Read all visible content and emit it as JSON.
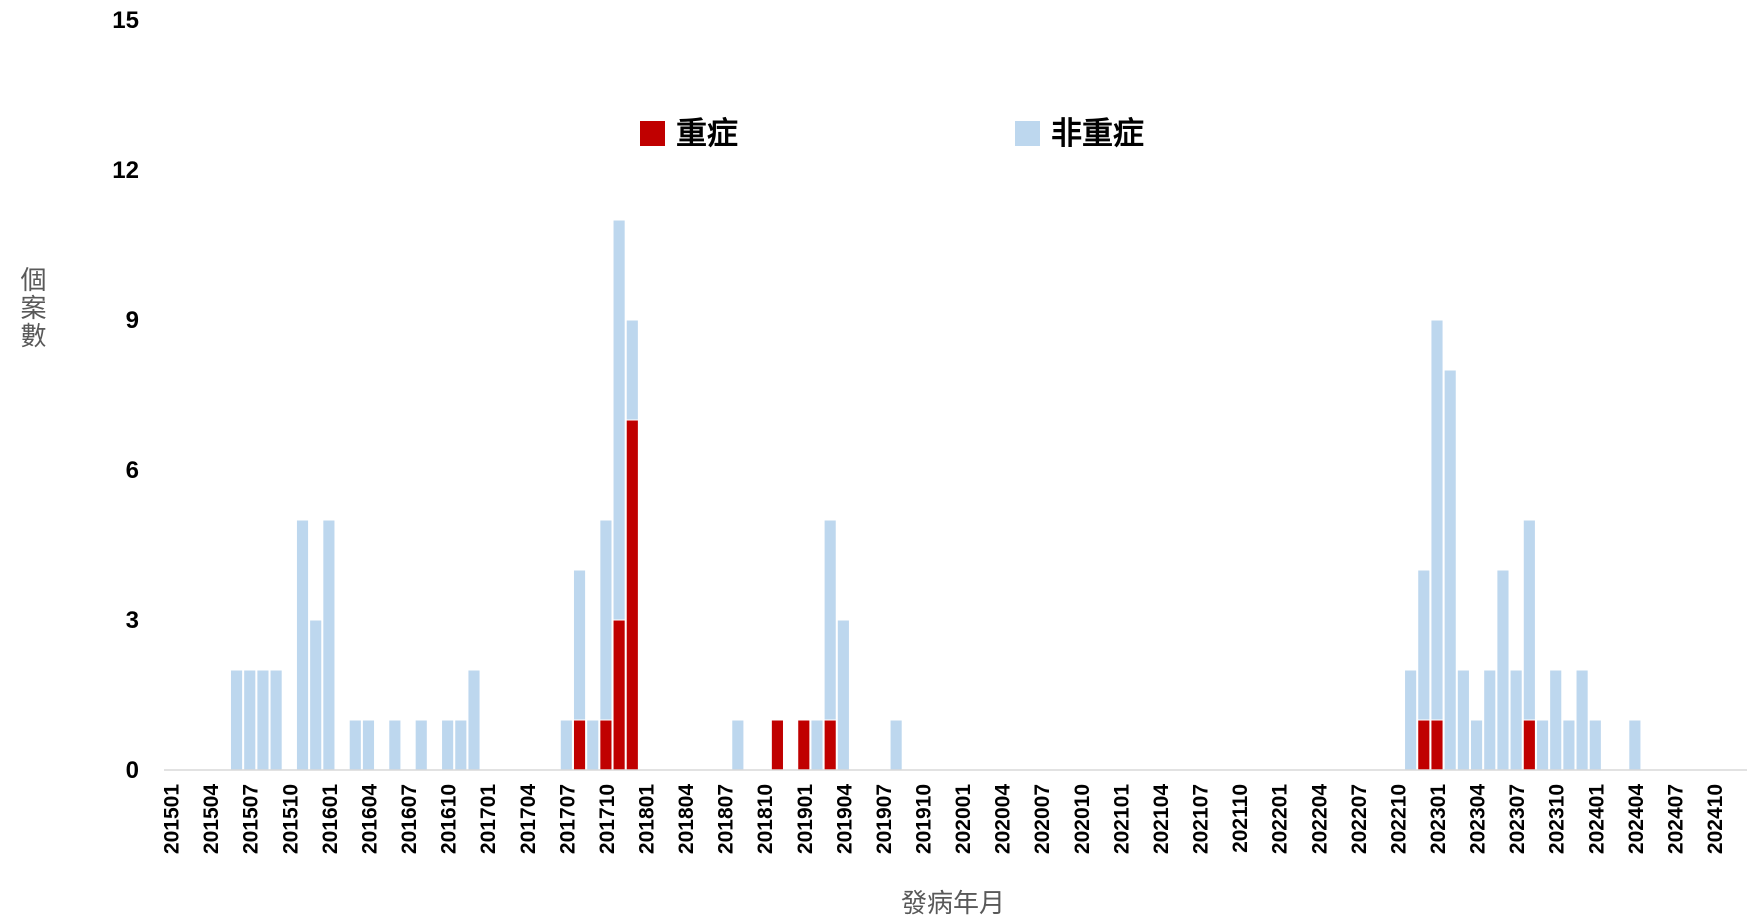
{
  "chart_data": {
    "type": "bar",
    "stacked": true,
    "title": "",
    "xlabel": "發病年月",
    "ylabel": "個案數",
    "ylim": [
      0,
      15
    ],
    "yticks": [
      0,
      3,
      6,
      9,
      12,
      15
    ],
    "grid": false,
    "legend_position": "top-center",
    "x_start": "201501",
    "x_end": "202412",
    "x_tick_labels": [
      "201501",
      "201504",
      "201507",
      "201510",
      "201601",
      "201604",
      "201607",
      "201610",
      "201701",
      "201704",
      "201707",
      "201710",
      "201801",
      "201804",
      "201807",
      "201810",
      "201901",
      "201904",
      "201907",
      "201910",
      "202001",
      "202004",
      "202007",
      "202010",
      "202101",
      "202104",
      "202107",
      "202110",
      "202201",
      "202204",
      "202207",
      "202210",
      "202301",
      "202304",
      "202307",
      "202310",
      "202401",
      "202404",
      "202407",
      "202410"
    ],
    "series": [
      {
        "name": "重症",
        "color": "#c00000",
        "points": [
          {
            "x": "201708",
            "y": 1
          },
          {
            "x": "201710",
            "y": 1
          },
          {
            "x": "201711",
            "y": 3
          },
          {
            "x": "201712",
            "y": 7
          },
          {
            "x": "201811",
            "y": 1
          },
          {
            "x": "201901",
            "y": 1
          },
          {
            "x": "201903",
            "y": 1
          },
          {
            "x": "202212",
            "y": 1
          },
          {
            "x": "202301",
            "y": 1
          },
          {
            "x": "202308",
            "y": 1
          }
        ]
      },
      {
        "name": "非重症",
        "color": "#bdd7ee",
        "points": [
          {
            "x": "201506",
            "y": 2
          },
          {
            "x": "201507",
            "y": 2
          },
          {
            "x": "201508",
            "y": 2
          },
          {
            "x": "201509",
            "y": 2
          },
          {
            "x": "201511",
            "y": 5
          },
          {
            "x": "201512",
            "y": 3
          },
          {
            "x": "201601",
            "y": 5
          },
          {
            "x": "201603",
            "y": 1
          },
          {
            "x": "201604",
            "y": 1
          },
          {
            "x": "201606",
            "y": 1
          },
          {
            "x": "201608",
            "y": 1
          },
          {
            "x": "201610",
            "y": 1
          },
          {
            "x": "201611",
            "y": 1
          },
          {
            "x": "201612",
            "y": 2
          },
          {
            "x": "201707",
            "y": 1
          },
          {
            "x": "201708",
            "y": 3
          },
          {
            "x": "201709",
            "y": 1
          },
          {
            "x": "201710",
            "y": 4
          },
          {
            "x": "201711",
            "y": 8
          },
          {
            "x": "201712",
            "y": 2
          },
          {
            "x": "201808",
            "y": 1
          },
          {
            "x": "201902",
            "y": 1
          },
          {
            "x": "201903",
            "y": 4
          },
          {
            "x": "201904",
            "y": 3
          },
          {
            "x": "201908",
            "y": 1
          },
          {
            "x": "202211",
            "y": 2
          },
          {
            "x": "202212",
            "y": 3
          },
          {
            "x": "202301",
            "y": 8
          },
          {
            "x": "202302",
            "y": 8
          },
          {
            "x": "202303",
            "y": 2
          },
          {
            "x": "202304",
            "y": 1
          },
          {
            "x": "202305",
            "y": 2
          },
          {
            "x": "202306",
            "y": 4
          },
          {
            "x": "202307",
            "y": 2
          },
          {
            "x": "202308",
            "y": 4
          },
          {
            "x": "202309",
            "y": 1
          },
          {
            "x": "202310",
            "y": 2
          },
          {
            "x": "202311",
            "y": 1
          },
          {
            "x": "202312",
            "y": 2
          },
          {
            "x": "202401",
            "y": 1
          },
          {
            "x": "202404",
            "y": 1
          }
        ]
      }
    ]
  }
}
